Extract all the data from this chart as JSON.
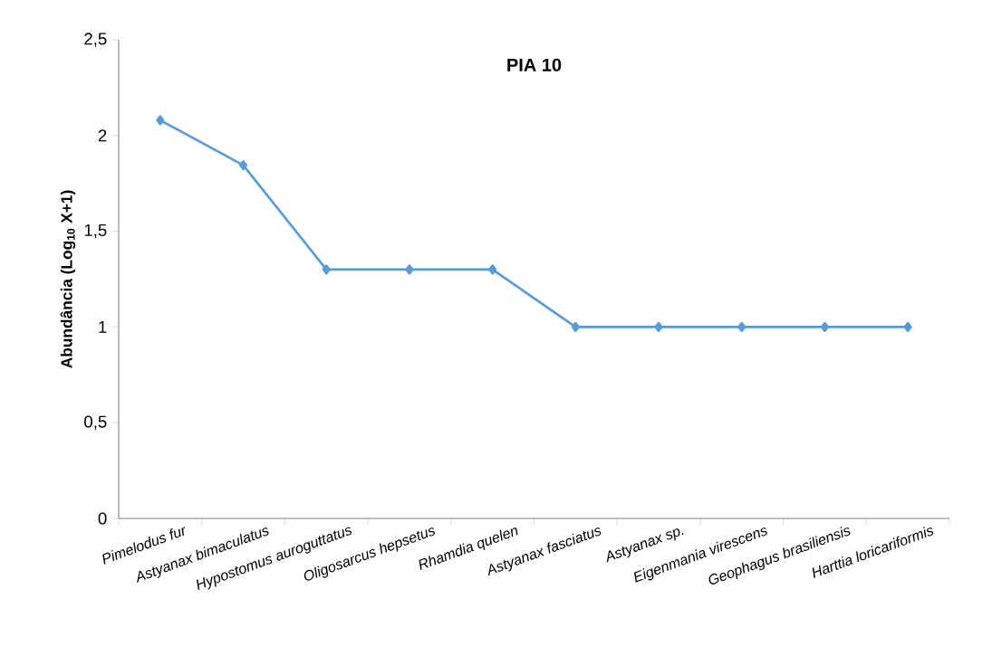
{
  "chart_data": {
    "type": "line",
    "title": "PIA 10",
    "ylabel": "Abundância (Log$_{10}$ X+1)",
    "categories": [
      "Pimelodus fur",
      "Astyanax bimaculatus",
      "Hypostomus auroguttatus",
      "Oligosarcus hepsetus",
      "Rhamdia quelen",
      "Astyanax fasciatus",
      "Astyanax sp.",
      "Eigenmania virescens",
      "Geophagus brasiliensis",
      "Harttia loricariformis"
    ],
    "values": [
      2.08,
      1.845,
      1.3,
      1.3,
      1.3,
      1,
      1,
      1,
      1,
      1
    ],
    "color": "#5b9bd5",
    "marker": "diamond",
    "line_style": "solid",
    "ylim": [
      0,
      2.5
    ],
    "yticks": [
      0,
      {
        "value": 0.5,
        "label": "0,5"
      },
      1,
      {
        "value": 1.5,
        "label": "1,5"
      },
      2,
      {
        "value": 2.5,
        "label": "2,5"
      }
    ]
  }
}
